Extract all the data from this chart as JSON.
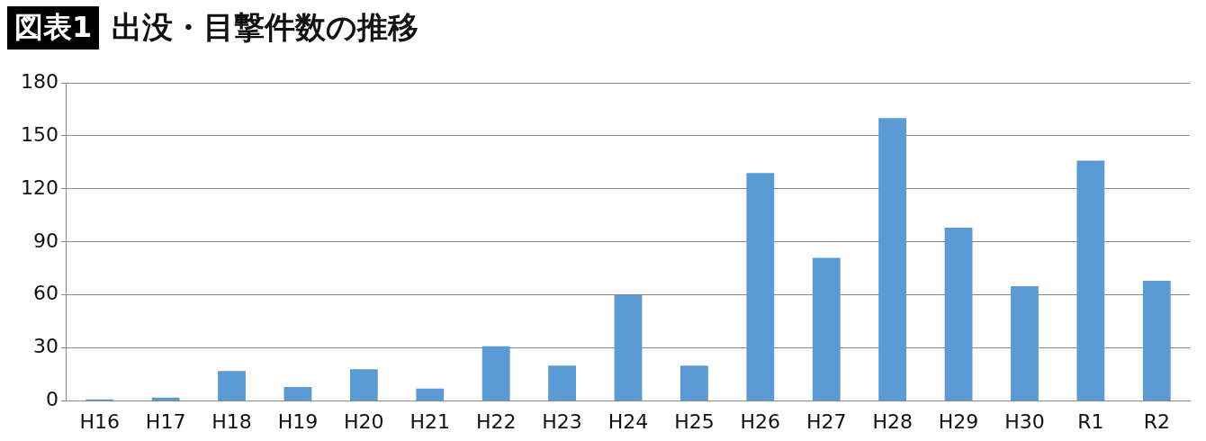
{
  "chart_data": {
    "type": "bar",
    "title": "出没・目撃件数の推移",
    "annotations": [
      "図表1"
    ],
    "categories": [
      "H16",
      "H17",
      "H18",
      "H19",
      "H20",
      "H21",
      "H22",
      "H23",
      "H24",
      "H25",
      "H26",
      "H27",
      "H28",
      "H29",
      "H30",
      "R1",
      "R2"
    ],
    "values": [
      1,
      2,
      17,
      8,
      18,
      7,
      31,
      20,
      60,
      20,
      129,
      81,
      160,
      98,
      65,
      136,
      68
    ],
    "color": "#5b9bd5",
    "ylim": [
      0,
      180
    ],
    "yticks": [
      0,
      30,
      60,
      90,
      120,
      150,
      180
    ],
    "grid": "y",
    "legend": false
  }
}
